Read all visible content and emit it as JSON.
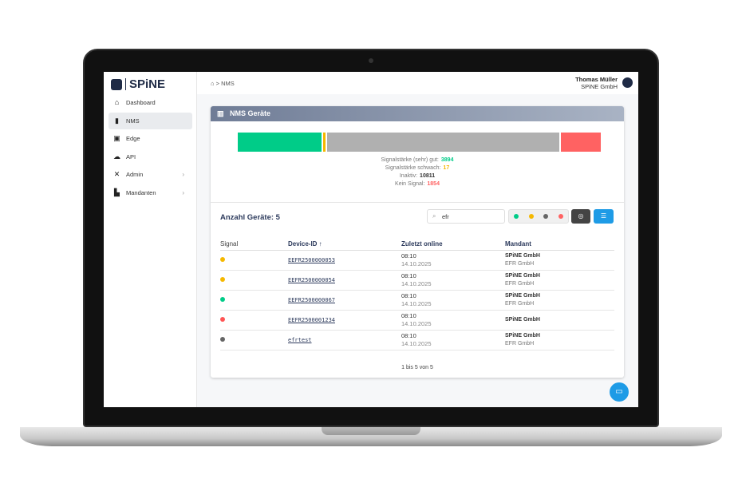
{
  "brand": {
    "name": "SPiNE"
  },
  "sidebar": {
    "items": [
      {
        "label": "Dashboard",
        "icon": "home-icon",
        "glyph": "⌂"
      },
      {
        "label": "NMS",
        "icon": "signal-bars-icon",
        "glyph": "▮"
      },
      {
        "label": "Edge",
        "icon": "chip-icon",
        "glyph": "▣"
      },
      {
        "label": "API",
        "icon": "cloud-icon",
        "glyph": "☁"
      },
      {
        "label": "Admin",
        "icon": "tools-icon",
        "glyph": "✕",
        "chevron": "›"
      },
      {
        "label": "Mandanten",
        "icon": "buildings-icon",
        "glyph": "▙",
        "chevron": "›"
      }
    ]
  },
  "header": {
    "breadcrumb": "⌂ > NMS",
    "user_name": "Thomas Müller",
    "user_company": "SPiNE GmbH"
  },
  "card": {
    "title": "NMS Geräte",
    "stats": [
      {
        "label": "Signalstärke (sehr) gut:",
        "value": "3894",
        "color": "#00cc88",
        "count": 3894
      },
      {
        "label": "Signalstärke schwach:",
        "value": "17",
        "color": "#f5b800",
        "count": 17
      },
      {
        "label": "Inaktiv:",
        "value": "10811",
        "color": "#b0b0b0",
        "count": 10811
      },
      {
        "label": "Kein Signal:",
        "value": "1854",
        "color": "#ff6262",
        "count": 1854
      }
    ],
    "count_label": "Anzahl Geräte: 5",
    "search_value": "efr",
    "columns": [
      "Signal",
      "Device-ID ↑",
      "Zuletzt online",
      "Mandant"
    ],
    "rows": [
      {
        "signal": "#f5b800",
        "id": "EEFR2500000053",
        "time": "08:10",
        "date": "14.10.2025",
        "m1": "SPiNE GmbH",
        "m2": "EFR GmbH"
      },
      {
        "signal": "#f5b800",
        "id": "EEFR2500000054",
        "time": "08:10",
        "date": "14.10.2025",
        "m1": "SPiNE GmbH",
        "m2": "EFR GmbH"
      },
      {
        "signal": "#00cc88",
        "id": "EEFR2500000067",
        "time": "08:10",
        "date": "14.10.2025",
        "m1": "SPiNE GmbH",
        "m2": "EFR GmbH"
      },
      {
        "signal": "#ff5555",
        "id": "EEFR2500001234",
        "time": "08:10",
        "date": "14.10.2025",
        "m1": "SPiNE GmbH",
        "m2": ""
      },
      {
        "signal": "#666666",
        "id": "efrtest",
        "time": "08:10",
        "date": "14.10.2025",
        "m1": "SPiNE GmbH",
        "m2": "EFR GmbH"
      }
    ],
    "pager": "1 bis 5 von 5"
  }
}
